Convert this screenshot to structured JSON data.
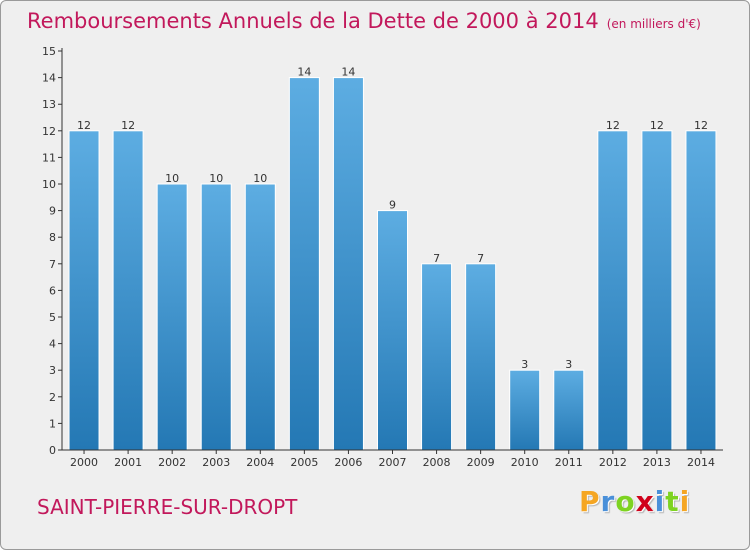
{
  "header": {
    "title": "Remboursements Annuels de la Dette de 2000 à 2014",
    "unit": "(en milliers d'€)"
  },
  "footer": {
    "commune": "SAINT-PIERRE-SUR-DROPT",
    "logo_letters": [
      "P",
      "r",
      "o",
      "x",
      "i",
      "t",
      "i"
    ],
    "logo_colors": [
      "#f5a623",
      "#4a90d9",
      "#7ed321",
      "#d0021b",
      "#4a90d9",
      "#7ed321",
      "#f5a623"
    ]
  },
  "colors": {
    "title": "#c2185b",
    "bar_top": "#5dade2",
    "bar_bottom": "#2478b4",
    "background": "#efefef"
  },
  "chart_data": {
    "type": "bar",
    "categories": [
      "2000",
      "2001",
      "2002",
      "2003",
      "2004",
      "2005",
      "2006",
      "2007",
      "2008",
      "2009",
      "2010",
      "2011",
      "2012",
      "2013",
      "2014"
    ],
    "values": [
      12,
      12,
      10,
      10,
      10,
      14,
      14,
      9,
      7,
      7,
      3,
      3,
      12,
      12,
      12
    ],
    "ylim": [
      0,
      15
    ],
    "yticks": [
      0,
      1,
      2,
      3,
      4,
      5,
      6,
      7,
      8,
      9,
      10,
      11,
      12,
      13,
      14,
      15
    ],
    "grid": false
  }
}
